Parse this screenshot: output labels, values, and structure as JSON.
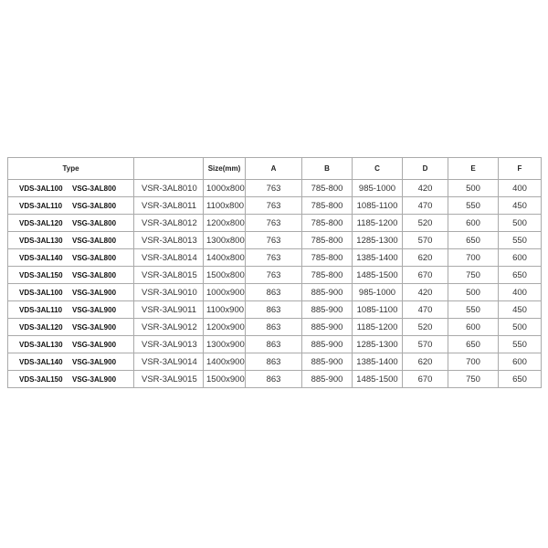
{
  "header": {
    "type": "Type",
    "model": "",
    "size": "Size(mm)",
    "a": "A",
    "b": "B",
    "c": "C",
    "d": "D",
    "e": "E",
    "f": "F"
  },
  "rows": [
    {
      "vds": "VDS-3AL100",
      "vsg": "VSG-3AL800",
      "vsr": "VSR-3AL8010",
      "size": "1000x800",
      "a": "763",
      "b": "785-800",
      "c": "985-1000",
      "d": "420",
      "e": "500",
      "f": "400"
    },
    {
      "vds": "VDS-3AL110",
      "vsg": "VSG-3AL800",
      "vsr": "VSR-3AL8011",
      "size": "1100x800",
      "a": "763",
      "b": "785-800",
      "c": "1085-1100",
      "d": "470",
      "e": "550",
      "f": "450"
    },
    {
      "vds": "VDS-3AL120",
      "vsg": "VSG-3AL800",
      "vsr": "VSR-3AL8012",
      "size": "1200x800",
      "a": "763",
      "b": "785-800",
      "c": "1185-1200",
      "d": "520",
      "e": "600",
      "f": "500"
    },
    {
      "vds": "VDS-3AL130",
      "vsg": "VSG-3AL800",
      "vsr": "VSR-3AL8013",
      "size": "1300x800",
      "a": "763",
      "b": "785-800",
      "c": "1285-1300",
      "d": "570",
      "e": "650",
      "f": "550"
    },
    {
      "vds": "VDS-3AL140",
      "vsg": "VSG-3AL800",
      "vsr": "VSR-3AL8014",
      "size": "1400x800",
      "a": "763",
      "b": "785-800",
      "c": "1385-1400",
      "d": "620",
      "e": "700",
      "f": "600"
    },
    {
      "vds": "VDS-3AL150",
      "vsg": "VSG-3AL800",
      "vsr": "VSR-3AL8015",
      "size": "1500x800",
      "a": "763",
      "b": "785-800",
      "c": "1485-1500",
      "d": "670",
      "e": "750",
      "f": "650"
    },
    {
      "vds": "VDS-3AL100",
      "vsg": "VSG-3AL900",
      "vsr": "VSR-3AL9010",
      "size": "1000x900",
      "a": "863",
      "b": "885-900",
      "c": "985-1000",
      "d": "420",
      "e": "500",
      "f": "400"
    },
    {
      "vds": "VDS-3AL110",
      "vsg": "VSG-3AL900",
      "vsr": "VSR-3AL9011",
      "size": "1100x900",
      "a": "863",
      "b": "885-900",
      "c": "1085-1100",
      "d": "470",
      "e": "550",
      "f": "450"
    },
    {
      "vds": "VDS-3AL120",
      "vsg": "VSG-3AL900",
      "vsr": "VSR-3AL9012",
      "size": "1200x900",
      "a": "863",
      "b": "885-900",
      "c": "1185-1200",
      "d": "520",
      "e": "600",
      "f": "500"
    },
    {
      "vds": "VDS-3AL130",
      "vsg": "VSG-3AL900",
      "vsr": "VSR-3AL9013",
      "size": "1300x900",
      "a": "863",
      "b": "885-900",
      "c": "1285-1300",
      "d": "570",
      "e": "650",
      "f": "550"
    },
    {
      "vds": "VDS-3AL140",
      "vsg": "VSG-3AL900",
      "vsr": "VSR-3AL9014",
      "size": "1400x900",
      "a": "863",
      "b": "885-900",
      "c": "1385-1400",
      "d": "620",
      "e": "700",
      "f": "600"
    },
    {
      "vds": "VDS-3AL150",
      "vsg": "VSG-3AL900",
      "vsr": "VSR-3AL9015",
      "size": "1500x900",
      "a": "863",
      "b": "885-900",
      "c": "1485-1500",
      "d": "670",
      "e": "750",
      "f": "650"
    }
  ]
}
